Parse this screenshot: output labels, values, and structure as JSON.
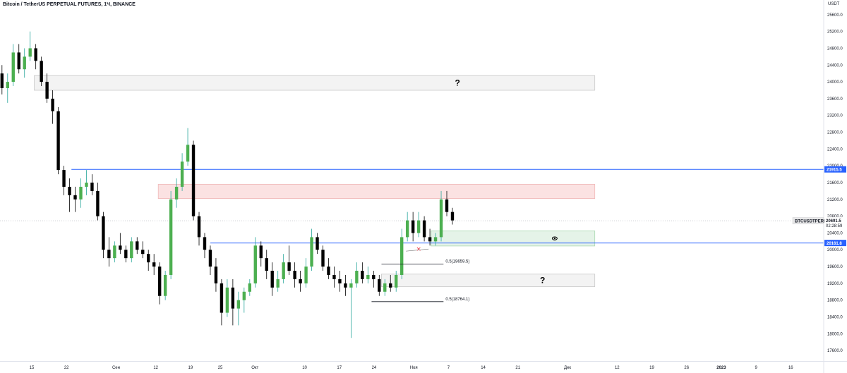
{
  "chart_data": {
    "type": "candlestick",
    "title": "Bitcoin / TetherUS PERPETUAL FUTURES, 1Ч, BINANCE",
    "currency": "USDT",
    "symbol": "BTCUSDTPERP",
    "last_price": "20691.5",
    "countdown": "02:28:59",
    "ylim": [
      17350,
      25950
    ],
    "yticks": [
      "25600.0",
      "25200.0",
      "24800.0",
      "24400.0",
      "24000.0",
      "23600.0",
      "23200.0",
      "22800.0",
      "22400.0",
      "22000.0",
      "21600.0",
      "21200.0",
      "20800.0",
      "20400.0",
      "20000.0",
      "19600.0",
      "19200.0",
      "18800.0",
      "18400.0",
      "18000.0",
      "17600.0"
    ],
    "xticks": [
      "15",
      "22",
      "Сен",
      "12",
      "19",
      "25",
      "Окт",
      "10",
      "17",
      "24",
      "Ноя",
      "7",
      "14",
      "21",
      "Дек",
      "12",
      "19",
      "26",
      "2023",
      "9",
      "16"
    ],
    "xtick_slots": [
      15,
      22,
      32,
      40,
      47,
      53,
      60,
      70,
      77,
      84,
      92,
      99,
      106,
      113,
      123,
      133,
      140,
      147,
      154,
      161,
      168
    ],
    "x_slot_range": [
      8.6,
      174.5
    ],
    "horizontal_lines": [
      {
        "price": 21915.5,
        "label": "21915.5",
        "start_slot": 23,
        "color": "#2962ff"
      },
      {
        "price": 20161.8,
        "label": "20161.8",
        "start_slot": 51,
        "color": "#2962ff"
      }
    ],
    "zones": [
      {
        "name": "upper-question-zone",
        "y1": 23800,
        "y2": 24150,
        "x1": 15.5,
        "x2": 128.5,
        "fill": "#f3f3f3",
        "stroke": "#c8c8c8",
        "label": "?"
      },
      {
        "name": "red-resistance-zone",
        "y1": 21220,
        "y2": 21560,
        "x1": 40.5,
        "x2": 128.5,
        "fill": "#fbe2e2",
        "stroke": "#f0b8b8",
        "label": ""
      },
      {
        "name": "green-support-zone",
        "y1": 20090,
        "y2": 20450,
        "x1": 95.5,
        "x2": 128.5,
        "fill": "#e5f3e8",
        "stroke": "#a8d8b0",
        "label": "eye"
      },
      {
        "name": "lower-question-zone",
        "y1": 19120,
        "y2": 19420,
        "x1": 85.5,
        "x2": 128.5,
        "fill": "#f3f3f3",
        "stroke": "#c8c8c8",
        "label": "?"
      }
    ],
    "fib_levels": [
      {
        "price": 19659.5,
        "label": "0.5(19659.5)",
        "x1": 85.5,
        "x2": 98.0
      },
      {
        "price": 18764.1,
        "label": "0.5(18764.1)",
        "x1": 83.5,
        "x2": 98.0
      }
    ],
    "marker_x": {
      "slot": 93,
      "price": 20000,
      "label": "×"
    },
    "series": [
      {
        "name": "BTCUSDTPERP",
        "ohlc": [
          [
            24200,
            24400,
            23700,
            23850
          ],
          [
            23850,
            24200,
            23500,
            24000
          ],
          [
            24000,
            24900,
            23900,
            24700
          ],
          [
            24700,
            24900,
            24200,
            24300
          ],
          [
            24300,
            24800,
            24100,
            24600
          ],
          [
            24600,
            25200,
            24500,
            24800
          ],
          [
            24800,
            24900,
            24300,
            24500
          ],
          [
            24500,
            24600,
            23900,
            24000
          ],
          [
            24000,
            24200,
            23500,
            23600
          ],
          [
            23600,
            23800,
            23000,
            23300
          ],
          [
            23300,
            23400,
            21800,
            21900
          ],
          [
            21900,
            22000,
            21300,
            21500
          ],
          [
            21500,
            21700,
            20900,
            21300
          ],
          [
            21300,
            21500,
            20900,
            21200
          ],
          [
            21200,
            21700,
            21000,
            21500
          ],
          [
            21500,
            21900,
            21300,
            21600
          ],
          [
            21600,
            21800,
            21300,
            21400
          ],
          [
            21400,
            21600,
            20700,
            20800
          ],
          [
            20800,
            20900,
            19800,
            20000
          ],
          [
            20000,
            20300,
            19600,
            19800
          ],
          [
            19800,
            20200,
            19700,
            20100
          ],
          [
            20100,
            20400,
            19900,
            20000
          ],
          [
            20000,
            20100,
            19700,
            19800
          ],
          [
            19800,
            20300,
            19700,
            20200
          ],
          [
            20200,
            20300,
            19900,
            20000
          ],
          [
            20000,
            20200,
            19800,
            19900
          ],
          [
            19900,
            20000,
            19500,
            19700
          ],
          [
            19700,
            19900,
            19400,
            19600
          ],
          [
            19600,
            19700,
            18700,
            18900
          ],
          [
            18900,
            19500,
            18800,
            19400
          ],
          [
            19400,
            21400,
            19300,
            21200
          ],
          [
            21200,
            21700,
            21000,
            21500
          ],
          [
            21500,
            22300,
            21400,
            22100
          ],
          [
            22100,
            22900,
            22000,
            22500
          ],
          [
            22500,
            22600,
            20700,
            20800
          ],
          [
            20800,
            20900,
            20100,
            20300
          ],
          [
            20300,
            20400,
            19800,
            20000
          ],
          [
            20000,
            20100,
            19400,
            19600
          ],
          [
            19600,
            19800,
            19000,
            19200
          ],
          [
            19200,
            19300,
            18200,
            18500
          ],
          [
            18500,
            19300,
            18400,
            19100
          ],
          [
            19100,
            19300,
            18200,
            18600
          ],
          [
            18600,
            19000,
            18200,
            18800
          ],
          [
            18800,
            19100,
            18500,
            19000
          ],
          [
            19000,
            19300,
            18900,
            19200
          ],
          [
            19200,
            20300,
            19100,
            20100
          ],
          [
            20100,
            20200,
            19600,
            19800
          ],
          [
            19800,
            20000,
            19300,
            19500
          ],
          [
            19500,
            19700,
            18900,
            19100
          ],
          [
            19100,
            19500,
            19000,
            19300
          ],
          [
            19300,
            19900,
            19200,
            19700
          ],
          [
            19700,
            20100,
            19400,
            19500
          ],
          [
            19500,
            19700,
            19100,
            19300
          ],
          [
            19300,
            19500,
            19000,
            19200
          ],
          [
            19200,
            19800,
            19100,
            19600
          ],
          [
            19600,
            20500,
            19500,
            20300
          ],
          [
            20300,
            20400,
            19900,
            20000
          ],
          [
            20000,
            20100,
            19500,
            19600
          ],
          [
            19600,
            19800,
            19300,
            19400
          ],
          [
            19400,
            19600,
            19100,
            19300
          ],
          [
            19300,
            19500,
            19000,
            19200
          ],
          [
            19200,
            19400,
            18900,
            19100
          ],
          [
            19100,
            19300,
            17900,
            19200
          ],
          [
            19200,
            19700,
            19100,
            19500
          ],
          [
            19500,
            19700,
            19200,
            19300
          ],
          [
            19300,
            19600,
            19200,
            19400
          ],
          [
            19400,
            19500,
            19100,
            19300
          ],
          [
            19300,
            19400,
            18900,
            19000
          ],
          [
            19000,
            19300,
            18900,
            19200
          ],
          [
            19200,
            19400,
            19000,
            19100
          ],
          [
            19100,
            19500,
            19000,
            19400
          ],
          [
            19400,
            20500,
            19300,
            20300
          ],
          [
            20300,
            20900,
            20200,
            20700
          ],
          [
            20700,
            20900,
            20200,
            20400
          ],
          [
            20400,
            20900,
            20300,
            20700
          ],
          [
            20700,
            20800,
            20200,
            20300
          ],
          [
            20300,
            20500,
            20100,
            20200
          ],
          [
            20200,
            20400,
            20100,
            20300
          ],
          [
            20300,
            21400,
            20200,
            21200
          ],
          [
            21200,
            21400,
            20800,
            20900
          ],
          [
            20900,
            21000,
            20600,
            20700
          ]
        ]
      }
    ],
    "icons": {
      "marker": "cross-icon",
      "eye": "eye-icon"
    }
  }
}
